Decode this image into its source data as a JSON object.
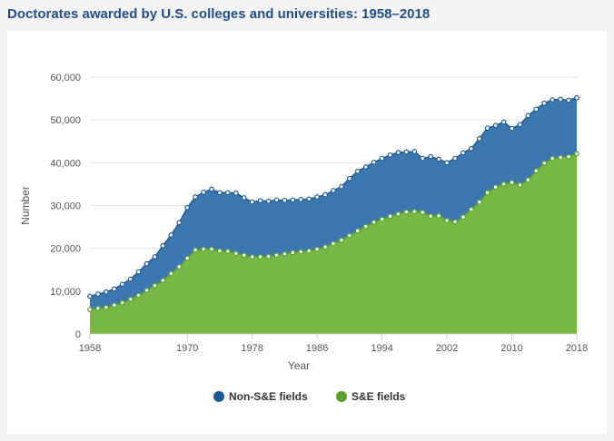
{
  "page": {
    "title": "Doctorates awarded by U.S. colleges and universities: 1958–2018"
  },
  "colors": {
    "title": "#1f4e8c",
    "non_se_fill": "#3b78b1",
    "non_se_line": "#1b5a96",
    "se_fill": "#76b843",
    "se_line": "#5aa02c",
    "grid": "#e6e6e6"
  },
  "chart_data": {
    "type": "area",
    "stacked": true,
    "title": "Doctorates awarded by U.S. colleges and universities: 1958–2018",
    "xlabel": "Year",
    "ylabel": "Number",
    "xlim": [
      1958,
      2018
    ],
    "ylim": [
      0,
      60000
    ],
    "xticks": [
      1958,
      1970,
      1978,
      1986,
      1994,
      2002,
      2010,
      2018
    ],
    "xtick_labels": [
      "1958",
      "1970",
      "1978",
      "1986",
      "1994",
      "2002",
      "2010",
      "2018"
    ],
    "yticks": [
      0,
      10000,
      20000,
      30000,
      40000,
      50000,
      60000
    ],
    "ytick_labels": [
      "0",
      "10,000",
      "20,000",
      "30,000",
      "40,000",
      "50,000",
      "60,000"
    ],
    "legend": "bottom-center",
    "x": [
      1958,
      1959,
      1960,
      1961,
      1962,
      1963,
      1964,
      1965,
      1966,
      1967,
      1968,
      1969,
      1970,
      1971,
      1972,
      1973,
      1974,
      1975,
      1976,
      1977,
      1978,
      1979,
      1980,
      1981,
      1982,
      1983,
      1984,
      1985,
      1986,
      1987,
      1988,
      1989,
      1990,
      1991,
      1992,
      1993,
      1994,
      1995,
      1996,
      1997,
      1998,
      1999,
      2000,
      2001,
      2002,
      2003,
      2004,
      2005,
      2006,
      2007,
      2008,
      2009,
      2010,
      2011,
      2012,
      2013,
      2014,
      2015,
      2016,
      2017,
      2018
    ],
    "series": [
      {
        "name": "S&E fields",
        "values": [
          5700,
          6000,
          6200,
          6700,
          7300,
          8100,
          9000,
          10200,
          11300,
          12500,
          14100,
          15700,
          17700,
          19600,
          19800,
          19800,
          19400,
          19300,
          18800,
          18400,
          18000,
          18000,
          18100,
          18400,
          18700,
          19000,
          19200,
          19400,
          19800,
          20300,
          21100,
          21900,
          23000,
          24100,
          25100,
          26100,
          26800,
          27500,
          28000,
          28500,
          28600,
          28400,
          27500,
          27600,
          26500,
          26200,
          27300,
          29100,
          30800,
          33000,
          34300,
          35000,
          35400,
          34800,
          36000,
          38100,
          39900,
          41000,
          41200,
          41400,
          42100
        ]
      },
      {
        "name": "Non-S&E fields",
        "total_values": [
          8800,
          9300,
          9800,
          10500,
          11600,
          12800,
          14500,
          16400,
          18000,
          20600,
          23100,
          26000,
          29500,
          32000,
          33100,
          33800,
          33000,
          33000,
          32900,
          31800,
          30800,
          31100,
          31000,
          31300,
          31200,
          31300,
          31400,
          31500,
          32000,
          32500,
          33500,
          34400,
          36300,
          38000,
          39000,
          40100,
          41000,
          41800,
          42400,
          42500,
          42600,
          41000,
          41400,
          40800,
          40000,
          41000,
          42300,
          43300,
          45600,
          48100,
          48700,
          49500,
          48000,
          48900,
          51000,
          52500,
          53900,
          54700,
          54800,
          54600,
          55200
        ]
      }
    ]
  },
  "legend": {
    "items": [
      {
        "label": "Non-S&E fields",
        "color": "#1b5a96"
      },
      {
        "label": "S&E fields",
        "color": "#5aa02c"
      }
    ]
  }
}
